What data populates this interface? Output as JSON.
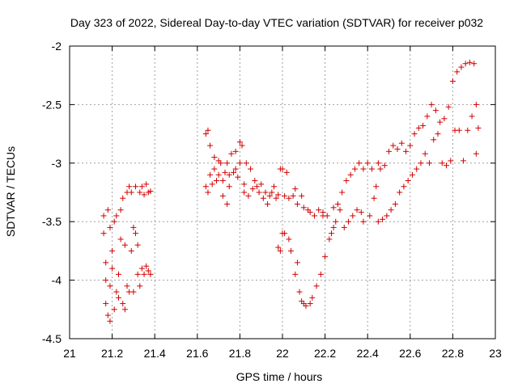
{
  "chart_data": {
    "type": "scatter",
    "title": "Day 323 of 2022, Sidereal Day-to-day VTEC variation (SDTVAR) for receiver p032",
    "xlabel": "GPS time / hours",
    "ylabel": "SDTVAR / TECUs",
    "xlim": [
      21,
      23
    ],
    "ylim": [
      -4.5,
      -2
    ],
    "grid": true,
    "x_ticks": [
      "21",
      "21.2",
      "21.4",
      "21.6",
      "21.8",
      "22",
      "22.2",
      "22.4",
      "22.6",
      "22.8",
      "23"
    ],
    "y_ticks": [
      "-2",
      "-2.5",
      "-3",
      "-3.5",
      "-4",
      "-4.5"
    ],
    "marker": "+",
    "series": [
      {
        "name": "receiver p032",
        "color": "#d00000",
        "points": [
          [
            21.16,
            -3.45
          ],
          [
            21.16,
            -3.6
          ],
          [
            21.17,
            -3.85
          ],
          [
            21.17,
            -4.0
          ],
          [
            21.17,
            -4.2
          ],
          [
            21.18,
            -4.3
          ],
          [
            21.18,
            -3.4
          ],
          [
            21.19,
            -3.55
          ],
          [
            21.19,
            -4.05
          ],
          [
            21.19,
            -4.35
          ],
          [
            21.2,
            -3.75
          ],
          [
            21.2,
            -3.9
          ],
          [
            21.21,
            -4.25
          ],
          [
            21.21,
            -3.5
          ],
          [
            21.22,
            -4.1
          ],
          [
            21.22,
            -3.45
          ],
          [
            21.23,
            -3.95
          ],
          [
            21.23,
            -4.15
          ],
          [
            21.24,
            -3.65
          ],
          [
            21.24,
            -3.4
          ],
          [
            21.25,
            -4.2
          ],
          [
            21.25,
            -3.3
          ],
          [
            21.26,
            -3.7
          ],
          [
            21.26,
            -4.25
          ],
          [
            21.27,
            -3.25
          ],
          [
            21.27,
            -4.05
          ],
          [
            21.28,
            -3.2
          ],
          [
            21.28,
            -4.1
          ],
          [
            21.29,
            -3.75
          ],
          [
            21.29,
            -3.25
          ],
          [
            21.3,
            -3.55
          ],
          [
            21.3,
            -4.1
          ],
          [
            21.31,
            -3.6
          ],
          [
            21.31,
            -3.2
          ],
          [
            21.32,
            -3.95
          ],
          [
            21.32,
            -3.7
          ],
          [
            21.33,
            -3.25
          ],
          [
            21.33,
            -4.05
          ],
          [
            21.34,
            -3.9
          ],
          [
            21.34,
            -3.2
          ],
          [
            21.35,
            -3.95
          ],
          [
            21.35,
            -3.27
          ],
          [
            21.36,
            -3.88
          ],
          [
            21.36,
            -3.18
          ],
          [
            21.37,
            -3.92
          ],
          [
            21.37,
            -3.25
          ],
          [
            21.38,
            -3.95
          ],
          [
            21.38,
            -3.24
          ],
          [
            21.64,
            -3.2
          ],
          [
            21.64,
            -2.75
          ],
          [
            21.65,
            -2.72
          ],
          [
            21.65,
            -3.25
          ],
          [
            21.66,
            -2.85
          ],
          [
            21.66,
            -3.1
          ],
          [
            21.67,
            -3.18
          ],
          [
            21.68,
            -2.95
          ],
          [
            21.68,
            -3.05
          ],
          [
            21.69,
            -3.15
          ],
          [
            21.7,
            -2.98
          ],
          [
            21.7,
            -3.1
          ],
          [
            21.71,
            -3.0
          ],
          [
            21.72,
            -3.15
          ],
          [
            21.72,
            -3.28
          ],
          [
            21.73,
            -3.08
          ],
          [
            21.74,
            -3.0
          ],
          [
            21.74,
            -3.35
          ],
          [
            21.75,
            -3.1
          ],
          [
            21.75,
            -3.2
          ],
          [
            21.76,
            -2.92
          ],
          [
            21.77,
            -3.08
          ],
          [
            21.78,
            -3.05
          ],
          [
            21.78,
            -2.9
          ],
          [
            21.79,
            -3.12
          ],
          [
            21.8,
            -2.82
          ],
          [
            21.8,
            -3.0
          ],
          [
            21.81,
            -2.85
          ],
          [
            21.82,
            -3.18
          ],
          [
            21.82,
            -3.25
          ],
          [
            21.83,
            -3.0
          ],
          [
            21.84,
            -3.28
          ],
          [
            21.85,
            -3.05
          ],
          [
            21.86,
            -3.22
          ],
          [
            21.87,
            -3.15
          ],
          [
            21.88,
            -3.2
          ],
          [
            21.89,
            -3.25
          ],
          [
            21.9,
            -3.18
          ],
          [
            21.91,
            -3.3
          ],
          [
            21.92,
            -3.25
          ],
          [
            21.93,
            -3.35
          ],
          [
            21.94,
            -3.28
          ],
          [
            21.95,
            -3.25
          ],
          [
            21.96,
            -3.2
          ],
          [
            21.97,
            -3.3
          ],
          [
            21.98,
            -3.72
          ],
          [
            21.98,
            -3.27
          ],
          [
            21.99,
            -3.05
          ],
          [
            21.99,
            -3.75
          ],
          [
            22.0,
            -3.05
          ],
          [
            22.0,
            -3.6
          ],
          [
            22.01,
            -3.28
          ],
          [
            22.01,
            -3.6
          ],
          [
            22.02,
            -3.08
          ],
          [
            22.03,
            -3.65
          ],
          [
            22.03,
            -3.3
          ],
          [
            22.04,
            -3.75
          ],
          [
            22.05,
            -3.28
          ],
          [
            22.06,
            -3.95
          ],
          [
            22.06,
            -3.22
          ],
          [
            22.07,
            -3.85
          ],
          [
            22.07,
            -3.35
          ],
          [
            22.08,
            -4.1
          ],
          [
            22.09,
            -3.28
          ],
          [
            22.09,
            -4.18
          ],
          [
            22.1,
            -4.2
          ],
          [
            22.1,
            -3.38
          ],
          [
            22.11,
            -4.22
          ],
          [
            22.12,
            -3.4
          ],
          [
            22.13,
            -4.2
          ],
          [
            22.13,
            -3.42
          ],
          [
            22.14,
            -4.15
          ],
          [
            22.15,
            -3.45
          ],
          [
            22.16,
            -4.05
          ],
          [
            22.17,
            -3.4
          ],
          [
            22.18,
            -3.95
          ],
          [
            22.19,
            -3.42
          ],
          [
            22.19,
            -3.45
          ],
          [
            22.2,
            -3.8
          ],
          [
            22.21,
            -3.45
          ],
          [
            22.22,
            -3.65
          ],
          [
            22.23,
            -3.6
          ],
          [
            22.24,
            -3.55
          ],
          [
            22.24,
            -3.38
          ],
          [
            22.25,
            -3.5
          ],
          [
            22.26,
            -3.35
          ],
          [
            22.27,
            -3.4
          ],
          [
            22.28,
            -3.25
          ],
          [
            22.29,
            -3.55
          ],
          [
            22.3,
            -3.15
          ],
          [
            22.31,
            -3.5
          ],
          [
            22.32,
            -3.1
          ],
          [
            22.33,
            -3.45
          ],
          [
            22.34,
            -3.05
          ],
          [
            22.35,
            -3.4
          ],
          [
            22.36,
            -3.0
          ],
          [
            22.37,
            -3.42
          ],
          [
            22.38,
            -3.05
          ],
          [
            22.38,
            -3.5
          ],
          [
            22.4,
            -3.0
          ],
          [
            22.41,
            -3.45
          ],
          [
            22.42,
            -3.05
          ],
          [
            22.43,
            -3.3
          ],
          [
            22.44,
            -3.2
          ],
          [
            22.45,
            -3.0
          ],
          [
            22.45,
            -3.5
          ],
          [
            22.46,
            -3.05
          ],
          [
            22.47,
            -3.48
          ],
          [
            22.48,
            -3.02
          ],
          [
            22.49,
            -3.45
          ],
          [
            22.5,
            -2.9
          ],
          [
            22.51,
            -3.4
          ],
          [
            22.52,
            -2.85
          ],
          [
            22.53,
            -3.35
          ],
          [
            22.54,
            -2.88
          ],
          [
            22.55,
            -3.25
          ],
          [
            22.56,
            -2.83
          ],
          [
            22.57,
            -3.2
          ],
          [
            22.58,
            -2.9
          ],
          [
            22.59,
            -3.15
          ],
          [
            22.6,
            -2.85
          ],
          [
            22.61,
            -3.1
          ],
          [
            22.62,
            -2.75
          ],
          [
            22.63,
            -3.05
          ],
          [
            22.64,
            -2.7
          ],
          [
            22.65,
            -3.0
          ],
          [
            22.66,
            -2.68
          ],
          [
            22.67,
            -2.92
          ],
          [
            22.68,
            -2.6
          ],
          [
            22.69,
            -3.0
          ],
          [
            22.7,
            -2.5
          ],
          [
            22.71,
            -2.8
          ],
          [
            22.72,
            -2.55
          ],
          [
            22.73,
            -2.75
          ],
          [
            22.74,
            -2.65
          ],
          [
            22.75,
            -3.0
          ],
          [
            22.76,
            -2.62
          ],
          [
            22.77,
            -3.02
          ],
          [
            22.78,
            -2.52
          ],
          [
            22.79,
            -2.98
          ],
          [
            22.8,
            -2.3
          ],
          [
            22.81,
            -2.72
          ],
          [
            22.82,
            -2.22
          ],
          [
            22.83,
            -2.72
          ],
          [
            22.84,
            -2.18
          ],
          [
            22.85,
            -2.98
          ],
          [
            22.86,
            -2.15
          ],
          [
            22.87,
            -2.72
          ],
          [
            22.88,
            -2.14
          ],
          [
            22.89,
            -2.6
          ],
          [
            22.9,
            -2.15
          ],
          [
            22.91,
            -2.5
          ],
          [
            22.91,
            -2.92
          ],
          [
            22.92,
            -2.7
          ]
        ]
      }
    ]
  }
}
